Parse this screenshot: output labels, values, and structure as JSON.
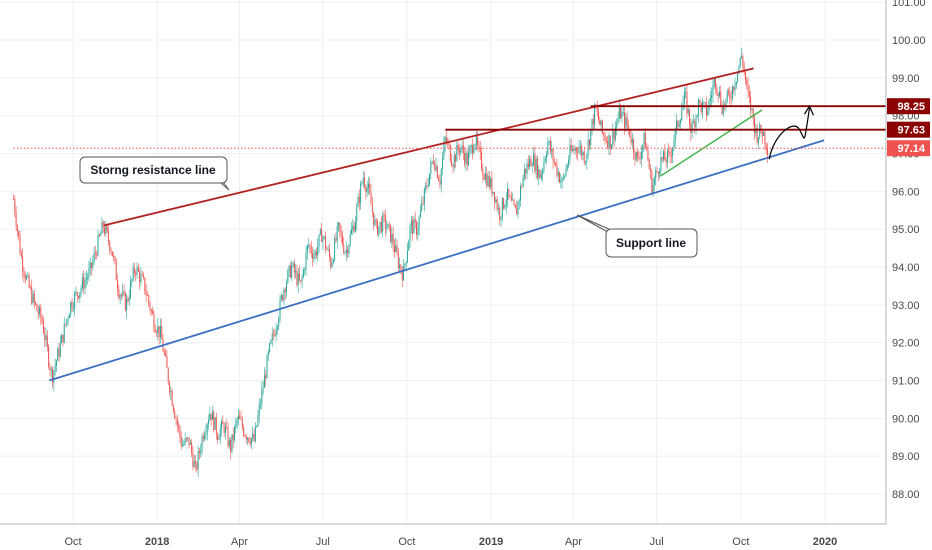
{
  "chart_data": {
    "type": "candlestick",
    "price_axis": {
      "min": 87.5,
      "max": 101.3,
      "ticks": [
        "101.00",
        "100.00",
        "99.00",
        "98.00",
        "97.00",
        "96.00",
        "95.00",
        "94.00",
        "93.00",
        "92.00",
        "91.00",
        "90.00",
        "89.00",
        "88.00"
      ]
    },
    "time_axis": {
      "labels": [
        {
          "text": "Oct",
          "date": "2017-10-01",
          "bold": false
        },
        {
          "text": "2018",
          "date": "2018-01-01",
          "bold": true
        },
        {
          "text": "Apr",
          "date": "2018-04-01",
          "bold": false
        },
        {
          "text": "Jul",
          "date": "2018-07-01",
          "bold": false
        },
        {
          "text": "Oct",
          "date": "2018-10-01",
          "bold": false
        },
        {
          "text": "2019",
          "date": "2019-01-01",
          "bold": true
        },
        {
          "text": "Apr",
          "date": "2019-04-01",
          "bold": false
        },
        {
          "text": "Jul",
          "date": "2019-07-01",
          "bold": false
        },
        {
          "text": "Oct",
          "date": "2019-10-01",
          "bold": false
        },
        {
          "text": "2020",
          "date": "2020-01-01",
          "bold": true
        }
      ]
    },
    "price_path": [
      [
        "2017-07-28",
        95.8
      ],
      [
        "2017-08-05",
        94.3
      ],
      [
        "2017-08-12",
        93.6
      ],
      [
        "2017-08-20",
        93.0
      ],
      [
        "2017-08-28",
        92.6
      ],
      [
        "2017-09-05",
        91.5
      ],
      [
        "2017-09-08",
        91.1
      ],
      [
        "2017-09-18",
        92.0
      ],
      [
        "2017-09-28",
        93.0
      ],
      [
        "2017-10-08",
        93.4
      ],
      [
        "2017-10-20",
        93.9
      ],
      [
        "2017-10-28",
        94.6
      ],
      [
        "2017-11-03",
        95.1
      ],
      [
        "2017-11-12",
        94.5
      ],
      [
        "2017-11-20",
        93.4
      ],
      [
        "2017-11-28",
        93.0
      ],
      [
        "2017-12-08",
        94.0
      ],
      [
        "2017-12-18",
        93.5
      ],
      [
        "2017-12-28",
        92.6
      ],
      [
        "2018-01-05",
        92.2
      ],
      [
        "2018-01-12",
        91.2
      ],
      [
        "2018-01-20",
        90.2
      ],
      [
        "2018-01-28",
        89.3
      ],
      [
        "2018-02-05",
        89.4
      ],
      [
        "2018-02-12",
        88.6
      ],
      [
        "2018-02-20",
        89.6
      ],
      [
        "2018-02-28",
        90.2
      ],
      [
        "2018-03-08",
        89.6
      ],
      [
        "2018-03-15",
        89.8
      ],
      [
        "2018-03-22",
        89.2
      ],
      [
        "2018-03-30",
        90.0
      ],
      [
        "2018-04-08",
        89.6
      ],
      [
        "2018-04-17",
        89.4
      ],
      [
        "2018-04-25",
        90.6
      ],
      [
        "2018-05-03",
        91.7
      ],
      [
        "2018-05-12",
        92.6
      ],
      [
        "2018-05-20",
        93.5
      ],
      [
        "2018-05-28",
        94.0
      ],
      [
        "2018-06-07",
        93.5
      ],
      [
        "2018-06-15",
        94.6
      ],
      [
        "2018-06-22",
        94.3
      ],
      [
        "2018-06-30",
        94.9
      ],
      [
        "2018-07-10",
        94.1
      ],
      [
        "2018-07-18",
        95.0
      ],
      [
        "2018-07-26",
        94.4
      ],
      [
        "2018-08-05",
        95.2
      ],
      [
        "2018-08-14",
        96.4
      ],
      [
        "2018-08-20",
        96.0
      ],
      [
        "2018-08-28",
        95.0
      ],
      [
        "2018-09-06",
        95.2
      ],
      [
        "2018-09-14",
        94.8
      ],
      [
        "2018-09-22",
        94.1
      ],
      [
        "2018-09-27",
        93.8
      ],
      [
        "2018-10-05",
        95.1
      ],
      [
        "2018-10-12",
        95.0
      ],
      [
        "2018-10-22",
        96.1
      ],
      [
        "2018-10-30",
        96.9
      ],
      [
        "2018-11-06",
        96.3
      ],
      [
        "2018-11-12",
        97.4
      ],
      [
        "2018-11-20",
        96.8
      ],
      [
        "2018-11-28",
        97.2
      ],
      [
        "2018-12-06",
        96.8
      ],
      [
        "2018-12-14",
        97.4
      ],
      [
        "2018-12-24",
        96.5
      ],
      [
        "2019-01-04",
        96.0
      ],
      [
        "2019-01-10",
        95.4
      ],
      [
        "2019-01-18",
        95.9
      ],
      [
        "2019-01-28",
        95.4
      ],
      [
        "2019-02-06",
        96.5
      ],
      [
        "2019-02-15",
        96.9
      ],
      [
        "2019-02-24",
        96.4
      ],
      [
        "2019-03-04",
        97.3
      ],
      [
        "2019-03-12",
        96.7
      ],
      [
        "2019-03-20",
        96.2
      ],
      [
        "2019-03-28",
        97.0
      ],
      [
        "2019-04-06",
        97.2
      ],
      [
        "2019-04-14",
        96.9
      ],
      [
        "2019-04-25",
        98.2
      ],
      [
        "2019-05-03",
        97.5
      ],
      [
        "2019-05-12",
        97.3
      ],
      [
        "2019-05-22",
        98.1
      ],
      [
        "2019-06-01",
        97.6
      ],
      [
        "2019-06-10",
        96.8
      ],
      [
        "2019-06-18",
        97.4
      ],
      [
        "2019-06-26",
        96.1
      ],
      [
        "2019-07-05",
        96.8
      ],
      [
        "2019-07-15",
        96.9
      ],
      [
        "2019-07-25",
        97.9
      ],
      [
        "2019-08-01",
        98.5
      ],
      [
        "2019-08-08",
        97.6
      ],
      [
        "2019-08-16",
        98.3
      ],
      [
        "2019-08-25",
        98.1
      ],
      [
        "2019-09-03",
        99.0
      ],
      [
        "2019-09-11",
        98.2
      ],
      [
        "2019-09-20",
        98.6
      ],
      [
        "2019-09-28",
        99.2
      ],
      [
        "2019-10-02",
        99.6
      ],
      [
        "2019-10-08",
        98.6
      ],
      [
        "2019-10-12",
        98.2
      ],
      [
        "2019-10-18",
        97.5
      ],
      [
        "2019-10-25",
        97.6
      ],
      [
        "2019-10-31",
        97.1
      ]
    ],
    "trend_lines": [
      {
        "id": "resistance",
        "color": "#b22222",
        "from": [
          "2017-11-04",
          95.1
        ],
        "to": [
          "2019-10-15",
          99.25
        ]
      },
      {
        "id": "support",
        "color": "#3a6fc4",
        "from": [
          "2017-09-05",
          91.0
        ],
        "to": [
          "2019-12-31",
          97.35
        ]
      },
      {
        "id": "minor-support",
        "color": "#3cb043",
        "from": [
          "2019-07-05",
          96.4
        ],
        "to": [
          "2019-10-24",
          98.15
        ]
      }
    ],
    "horizontal_levels": [
      {
        "id": "level-98-25",
        "price": 98.25,
        "label": "98.25",
        "from": "2019-04-20",
        "color": "#8b0000",
        "line_style": "solid"
      },
      {
        "id": "level-97-63",
        "price": 97.63,
        "label": "97.63",
        "from": "2018-11-12",
        "color": "#8b0000",
        "line_style": "solid"
      },
      {
        "id": "level-97-14",
        "price": 97.14,
        "label": "97.14",
        "from": "2017-07-28",
        "color": "#ef5350",
        "line_style": "dotted"
      }
    ],
    "annotations": [
      {
        "id": "resistance-callout",
        "text": "Storng resistance line"
      },
      {
        "id": "support-callout",
        "text": "Support line"
      }
    ],
    "projection_arrow": {
      "color": "#000000",
      "target_price": 98.25
    },
    "colors": {
      "up": "#26a69a",
      "down": "#ef5350",
      "grid": "#eef0f3",
      "axis": "#b2b5be"
    }
  }
}
